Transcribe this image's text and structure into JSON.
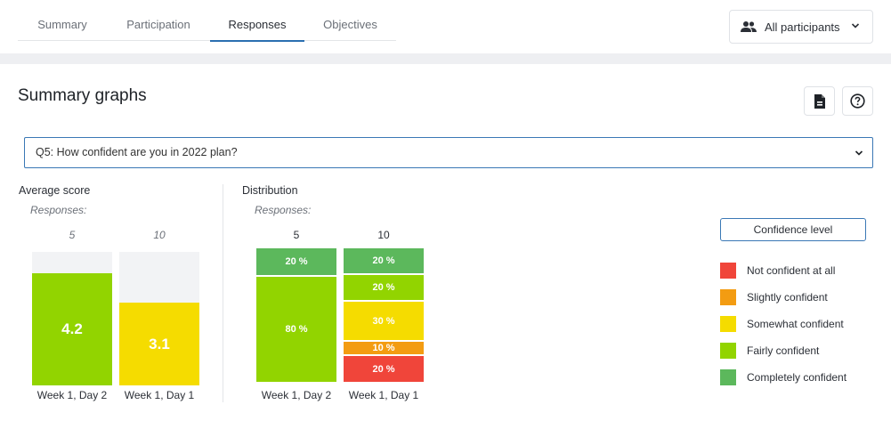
{
  "tabs": [
    {
      "label": "Summary"
    },
    {
      "label": "Participation"
    },
    {
      "label": "Responses"
    },
    {
      "label": "Objectives"
    }
  ],
  "participants_filter": {
    "label": "All participants",
    "icon": "people-icon"
  },
  "section_title": "Summary graphs",
  "actions": {
    "export_icon": "file-export-icon",
    "help_icon": "help-circle-icon"
  },
  "question": {
    "selected": "Q5: How confident are you in 2022 plan?"
  },
  "average": {
    "label": "Average score",
    "responses_label": "Responses:",
    "max_score": 5
  },
  "distribution": {
    "label": "Distribution",
    "responses_label": "Responses:"
  },
  "legend": {
    "button_label": "Confidence level",
    "items": [
      {
        "label": "Not confident at all",
        "color": "#f0453a"
      },
      {
        "label": "Slightly confident",
        "color": "#f39c12"
      },
      {
        "label": "Somewhat confident",
        "color": "#f5dc00"
      },
      {
        "label": "Fairly confident",
        "color": "#92d400"
      },
      {
        "label": "Completely confident",
        "color": "#5cb85c"
      }
    ]
  },
  "chart_data": [
    {
      "type": "bar",
      "title": "Average score",
      "categories": [
        "Week 1, Day 2",
        "Week 1, Day 1"
      ],
      "responses": [
        "5",
        "10"
      ],
      "values": [
        4.2,
        3.1
      ],
      "value_labels": [
        "4.2",
        "3.1"
      ],
      "colors": [
        "#92d400",
        "#f5dc00"
      ],
      "ylim": [
        0,
        5
      ]
    },
    {
      "type": "bar",
      "stacked": true,
      "title": "Distribution",
      "categories": [
        "Week 1, Day 2",
        "Week 1, Day 1"
      ],
      "responses": [
        "5",
        "10"
      ],
      "series": [
        {
          "name": "Completely confident",
          "values": [
            20,
            20
          ],
          "labels": [
            "20 %",
            "20 %"
          ],
          "color": "#5cb85c"
        },
        {
          "name": "Fairly confident",
          "values": [
            80,
            20
          ],
          "labels": [
            "80 %",
            "20 %"
          ],
          "color": "#92d400"
        },
        {
          "name": "Somewhat confident",
          "values": [
            0,
            30
          ],
          "labels": [
            "",
            "30 %"
          ],
          "color": "#f5dc00"
        },
        {
          "name": "Slightly confident",
          "values": [
            0,
            10
          ],
          "labels": [
            "",
            "10 %"
          ],
          "color": "#f39c12"
        },
        {
          "name": "Not confident at all",
          "values": [
            0,
            20
          ],
          "labels": [
            "",
            "20 %"
          ],
          "color": "#f0453a"
        }
      ]
    }
  ]
}
